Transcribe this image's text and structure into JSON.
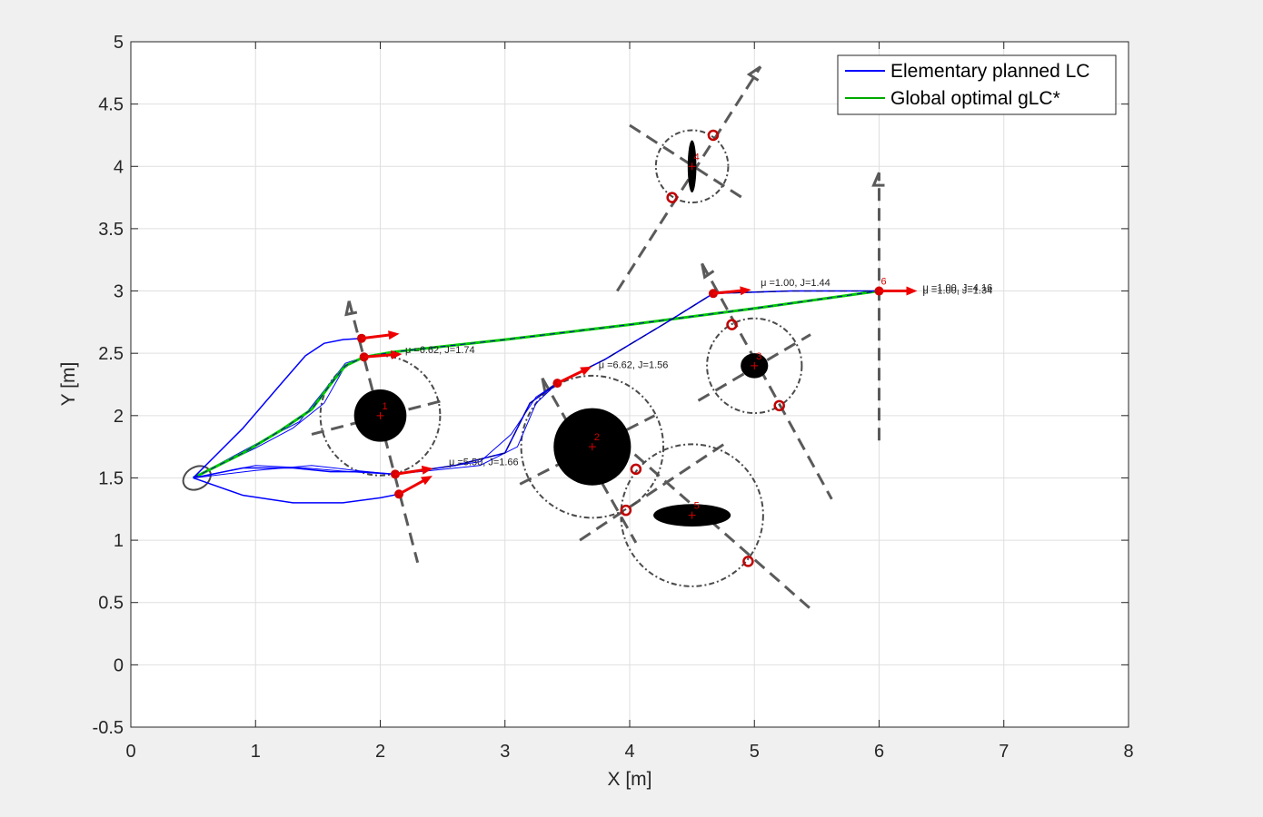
{
  "chart_data": {
    "type": "line",
    "xlabel": "X [m]",
    "ylabel": "Y [m]",
    "xlim": [
      0,
      8
    ],
    "ylim": [
      -0.5,
      5
    ],
    "xticks": [
      "0",
      "1",
      "2",
      "3",
      "4",
      "5",
      "6",
      "7",
      "8"
    ],
    "yticks": [
      "-0.5",
      "0",
      "0.5",
      "1",
      "1.5",
      "2",
      "2.5",
      "3",
      "3.5",
      "4",
      "4.5",
      "5"
    ],
    "grid": true,
    "legend_position": "top-right",
    "legend": [
      {
        "name": "Elementary planned LC",
        "color": "#0000ff"
      },
      {
        "name": "Global optimal gLC*",
        "color": "#00aa00"
      }
    ],
    "start": {
      "x": 0.5,
      "y": 1.5
    },
    "obstacles": [
      {
        "id": "1",
        "cx": 2.0,
        "cy": 2.0,
        "rx": 0.21,
        "ry": 0.21,
        "R": 0.48
      },
      {
        "id": "2",
        "cx": 3.7,
        "cy": 1.75,
        "rx": 0.31,
        "ry": 0.31,
        "R": 0.57
      },
      {
        "id": "3",
        "cx": 5.0,
        "cy": 2.4,
        "rx": 0.11,
        "ry": 0.1,
        "R": 0.38
      },
      {
        "id": "4",
        "cx": 4.5,
        "cy": 4.0,
        "rx": 0.035,
        "ry": 0.21,
        "R": 0.29
      },
      {
        "id": "5",
        "cx": 4.5,
        "cy": 1.2,
        "rx": 0.31,
        "ry": 0.09,
        "R": 0.57
      },
      {
        "id": "6",
        "cx": 6.0,
        "cy": 3.0,
        "rx": 0,
        "ry": 0,
        "R": 0
      }
    ],
    "annotations": [
      {
        "x": 2.2,
        "y": 2.5,
        "text": "μ =6.62, J=1.74"
      },
      {
        "x": 2.55,
        "y": 1.6,
        "text": "μ =5.50, J=1.66"
      },
      {
        "x": 3.75,
        "y": 2.38,
        "text": "μ =6.62, J=1.56"
      },
      {
        "x": 5.05,
        "y": 3.04,
        "text": "μ =1.00, J=1.44"
      },
      {
        "x": 6.35,
        "y": 3.0,
        "text": "μ =1.00, J=4.16"
      },
      {
        "x": 6.35,
        "y": 2.98,
        "text": "μ =1.00, J=1.34"
      }
    ],
    "series": [
      {
        "name": "Global optimal gLC*",
        "color": "#00cc00",
        "x": [
          0.5,
          0.9,
          1.2,
          1.45,
          1.6,
          1.72,
          1.87,
          2.1,
          3.0,
          4.0,
          5.0,
          6.0
        ],
        "y": [
          1.5,
          1.7,
          1.88,
          2.05,
          2.25,
          2.4,
          2.47,
          2.51,
          2.61,
          2.73,
          2.86,
          3.0
        ]
      },
      {
        "name": "Elementary planned LC",
        "color": "#0000ff",
        "x": [
          0.5,
          0.9,
          1.2,
          1.4,
          1.55,
          1.7,
          1.85
        ],
        "y": [
          1.5,
          1.9,
          2.25,
          2.48,
          2.58,
          2.61,
          2.62
        ]
      },
      {
        "name": "Elementary planned LC",
        "color": "#0000ff",
        "x": [
          0.5,
          0.9,
          1.3,
          1.6,
          1.85,
          2.12,
          2.6,
          3.0,
          3.2,
          3.42,
          3.8,
          4.3,
          4.67,
          5.3,
          6.0
        ],
        "y": [
          1.5,
          1.58,
          1.58,
          1.55,
          1.55,
          1.53,
          1.6,
          1.7,
          2.1,
          2.26,
          2.45,
          2.75,
          2.98,
          3.0,
          3.0
        ]
      },
      {
        "name": "Elementary planned LC",
        "color": "#0000ff",
        "x": [
          0.5,
          0.9,
          1.3,
          1.7,
          2.0,
          2.15
        ],
        "y": [
          1.5,
          1.36,
          1.3,
          1.3,
          1.34,
          1.37
        ]
      }
    ]
  }
}
